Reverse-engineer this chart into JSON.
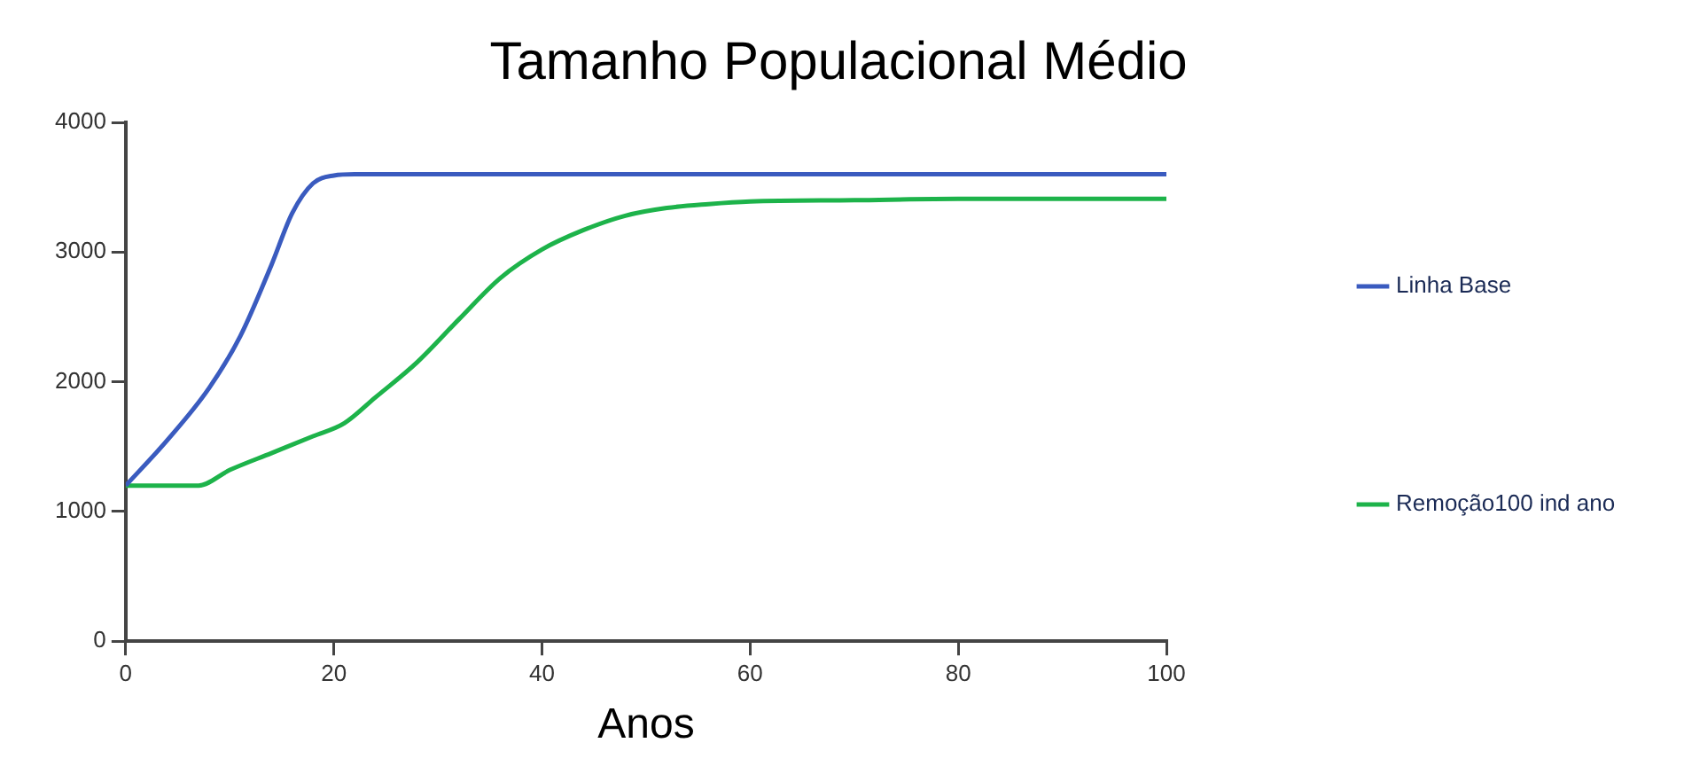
{
  "chart_data": {
    "type": "line",
    "title": "Tamanho Populacional Médio",
    "xlabel": "Anos",
    "xlim": [
      0,
      100
    ],
    "xticks": [
      0,
      20,
      40,
      60,
      80,
      100
    ],
    "ylim": [
      0,
      4000
    ],
    "yticks": [
      0,
      1000,
      2000,
      3000,
      4000
    ],
    "grid": false,
    "legend": "right",
    "marker": "none",
    "line_style": "solid",
    "series": [
      {
        "name": "Linha Base",
        "color": "#3a5bbf",
        "x": [
          0,
          4,
          8,
          11,
          14,
          16,
          18,
          20,
          22,
          100
        ],
        "values": [
          1200,
          1550,
          1950,
          2350,
          2900,
          3300,
          3530,
          3590,
          3600,
          3600
        ]
      },
      {
        "name": "Remoção100 ind ano",
        "color": "#1db34a",
        "x": [
          0,
          7,
          10,
          14,
          18,
          21,
          24,
          28,
          32,
          36,
          40,
          44,
          48,
          52,
          56,
          60,
          70,
          80,
          100
        ],
        "values": [
          1200,
          1200,
          1320,
          1450,
          1580,
          1680,
          1880,
          2150,
          2480,
          2800,
          3020,
          3170,
          3280,
          3340,
          3370,
          3390,
          3400,
          3410,
          3410
        ]
      }
    ]
  }
}
